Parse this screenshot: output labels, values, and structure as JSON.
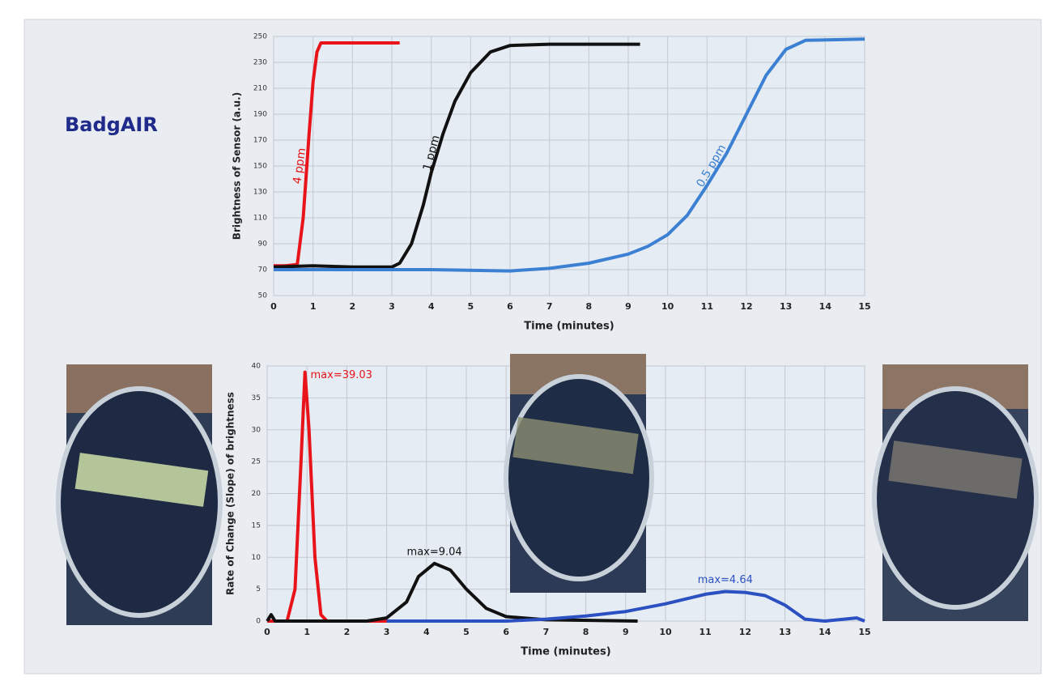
{
  "slide_title": "BadgAIR",
  "chart_data": [
    {
      "type": "line",
      "ylabel": "Brightness of Sensor (a.u.)",
      "xlabel": "Time (minutes)",
      "xlim": [
        0,
        15
      ],
      "xticks": [
        0,
        1,
        2,
        3,
        4,
        5,
        6,
        7,
        8,
        9,
        10,
        11,
        12,
        13,
        14,
        15
      ],
      "ylim": [
        50,
        250
      ],
      "yticks": [
        50,
        70,
        90,
        110,
        130,
        150,
        170,
        190,
        210,
        230,
        250
      ],
      "grid": true,
      "series": [
        {
          "name": "4 ppm",
          "color": "#e8141a",
          "x": [
            0,
            0.3,
            0.6,
            0.75,
            0.9,
            1.0,
            1.1,
            1.2,
            1.4,
            2.0,
            3.2
          ],
          "values": [
            73,
            73,
            74,
            110,
            175,
            215,
            238,
            245,
            245,
            245,
            245
          ]
        },
        {
          "name": "1 ppm",
          "color": "#111111",
          "x": [
            0,
            1,
            2,
            3,
            3.2,
            3.5,
            3.8,
            4.0,
            4.3,
            4.6,
            5.0,
            5.5,
            6.0,
            7.0,
            9.3
          ],
          "values": [
            72,
            73,
            72,
            72,
            75,
            90,
            120,
            145,
            175,
            200,
            222,
            238,
            243,
            244,
            244
          ]
        },
        {
          "name": "0.5 ppm",
          "color": "#3b80d2",
          "x": [
            0,
            2,
            4,
            6,
            7,
            8,
            9,
            9.5,
            10,
            10.5,
            11,
            11.5,
            12,
            12.5,
            13,
            13.5,
            15
          ],
          "values": [
            70,
            70,
            70,
            69,
            71,
            75,
            82,
            88,
            97,
            112,
            135,
            160,
            190,
            220,
            240,
            247,
            248
          ]
        }
      ]
    },
    {
      "type": "line",
      "ylabel": "Rate of Change (Slope) of brightness",
      "xlabel": "Time (minutes)",
      "xlim": [
        0,
        15
      ],
      "xticks": [
        0,
        1,
        2,
        3,
        4,
        5,
        6,
        7,
        8,
        9,
        10,
        11,
        12,
        13,
        14,
        15
      ],
      "ylim": [
        0,
        40
      ],
      "yticks": [
        0,
        5,
        10,
        15,
        20,
        25,
        30,
        35,
        40
      ],
      "grid": true,
      "series": [
        {
          "color": "#e8141a",
          "annotation": "max=39.03",
          "x": [
            0,
            0.5,
            0.7,
            0.85,
            0.95,
            1.05,
            1.2,
            1.35,
            1.5,
            3.1
          ],
          "values": [
            0,
            0,
            5,
            25,
            39.03,
            30,
            10,
            1,
            0,
            0
          ]
        },
        {
          "color": "#111111",
          "annotation": "max=9.04",
          "x": [
            0,
            0.1,
            0.2,
            2.5,
            3.0,
            3.5,
            3.8,
            4.2,
            4.6,
            5.0,
            5.5,
            6.0,
            7.0,
            9.3
          ],
          "values": [
            0,
            1,
            0,
            0,
            0.5,
            3,
            7,
            9.04,
            8,
            5,
            2,
            0.7,
            0.2,
            0
          ]
        },
        {
          "color": "#2a50c2",
          "annotation": "max=4.64",
          "x": [
            3,
            6,
            7,
            8,
            9,
            10,
            11,
            11.5,
            12,
            12.5,
            13,
            13.5,
            14,
            14.8,
            15
          ],
          "values": [
            0,
            0,
            0.3,
            0.8,
            1.5,
            2.7,
            4.2,
            4.64,
            4.5,
            4,
            2.5,
            0.3,
            0,
            0.5,
            0
          ]
        }
      ]
    }
  ]
}
